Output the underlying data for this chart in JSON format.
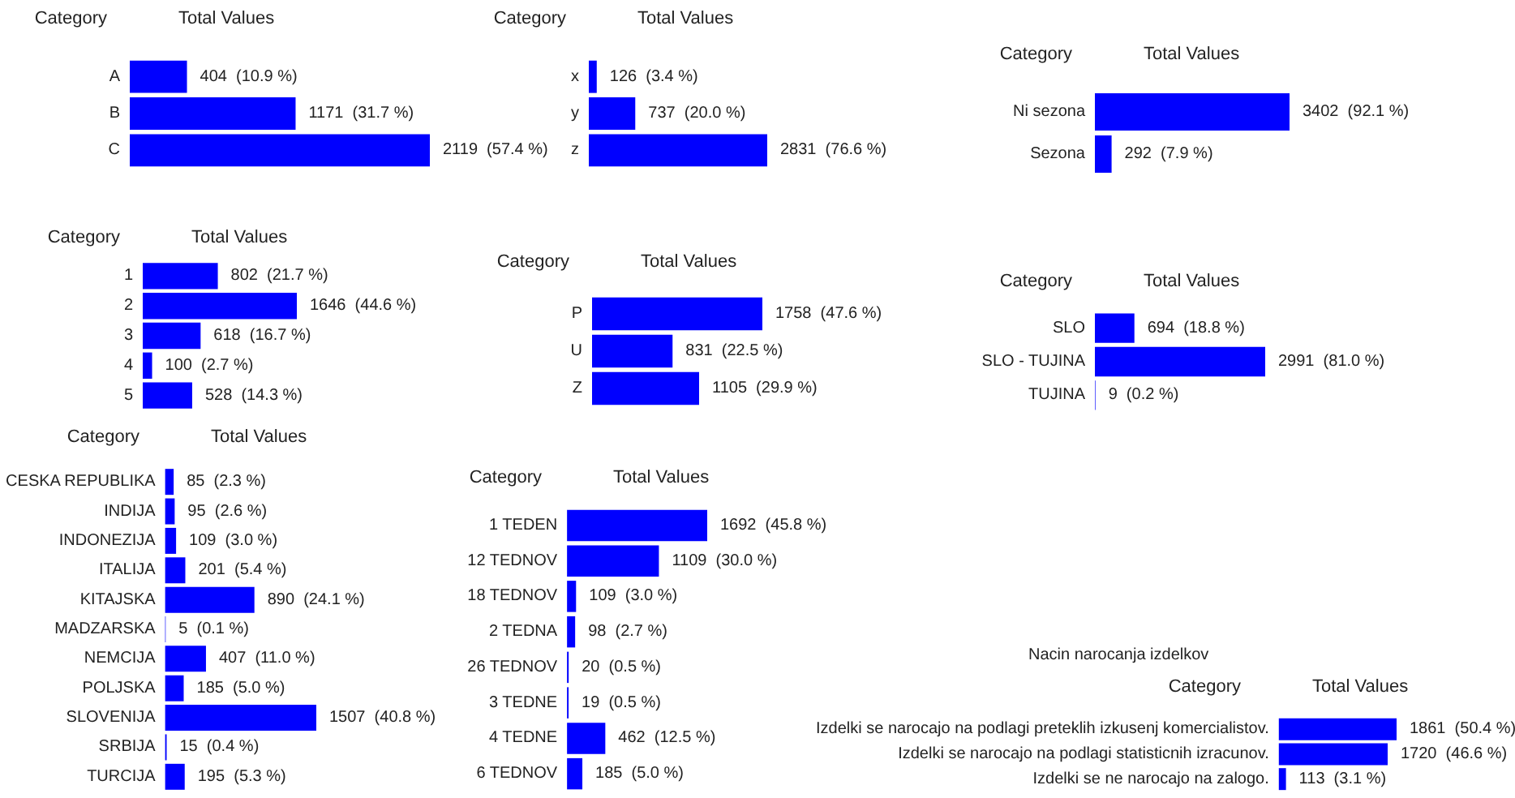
{
  "chart_data": [
    {
      "type": "bar",
      "orientation": "horizontal",
      "ylabel": "Category",
      "xlabel": "Total Values",
      "tick_labels": "y",
      "color": "#0000ff",
      "categories": [
        "A",
        "B",
        "C"
      ],
      "values": [
        404,
        1171,
        2119
      ],
      "value_labels": [
        "404  (10.9 %)",
        "1171  (31.7 %)",
        "2119  (57.4 %)"
      ]
    },
    {
      "type": "bar",
      "orientation": "horizontal",
      "ylabel": "Category",
      "xlabel": "Total Values",
      "tick_labels": "y",
      "color": "#0000ff",
      "categories": [
        "x",
        "y",
        "z"
      ],
      "values": [
        126,
        737,
        2831
      ],
      "value_labels": [
        "126  (3.4 %)",
        "737  (20.0 %)",
        "2831  (76.6 %)"
      ]
    },
    {
      "type": "bar",
      "orientation": "horizontal",
      "ylabel": "Category",
      "xlabel": "Total Values",
      "tick_labels": "y",
      "color": "#0000ff",
      "categories": [
        "Ni sezona",
        "Sezona"
      ],
      "values": [
        3402,
        292
      ],
      "value_labels": [
        "3402  (92.1 %)",
        "292  (7.9 %)"
      ]
    },
    {
      "type": "bar",
      "orientation": "horizontal",
      "ylabel": "Category",
      "xlabel": "Total Values",
      "tick_labels": "y",
      "color": "#0000ff",
      "categories": [
        "1",
        "2",
        "3",
        "4",
        "5"
      ],
      "values": [
        802,
        1646,
        618,
        100,
        528
      ],
      "value_labels": [
        "802  (21.7 %)",
        "1646  (44.6 %)",
        "618  (16.7 %)",
        "100  (2.7 %)",
        "528  (14.3 %)"
      ]
    },
    {
      "type": "bar",
      "orientation": "horizontal",
      "ylabel": "Category",
      "xlabel": "Total Values",
      "tick_labels": "y",
      "color": "#0000ff",
      "categories": [
        "P",
        "U",
        "Z"
      ],
      "values": [
        1758,
        831,
        1105
      ],
      "value_labels": [
        "1758  (47.6 %)",
        "831  (22.5 %)",
        "1105  (29.9 %)"
      ]
    },
    {
      "type": "bar",
      "orientation": "horizontal",
      "ylabel": "Category",
      "xlabel": "Total Values",
      "tick_labels": "y",
      "color": "#0000ff",
      "categories": [
        "SLO",
        "SLO - TUJINA",
        "TUJINA"
      ],
      "values": [
        694,
        2991,
        9
      ],
      "value_labels": [
        "694  (18.8 %)",
        "2991  (81.0 %)",
        "9  (0.2 %)"
      ]
    },
    {
      "type": "bar",
      "orientation": "horizontal",
      "ylabel": "Category",
      "xlabel": "Total Values",
      "tick_labels": "y",
      "color": "#0000ff",
      "categories": [
        "CESKA REPUBLIKA",
        "INDIJA",
        "INDONEZIJA",
        "ITALIJA",
        "KITAJSKA",
        "MADZARSKA",
        "NEMCIJA",
        "POLJSKA",
        "SLOVENIJA",
        "SRBIJA",
        "TURCIJA"
      ],
      "values": [
        85,
        95,
        109,
        201,
        890,
        5,
        407,
        185,
        1507,
        15,
        195
      ],
      "value_labels": [
        "85  (2.3 %)",
        "95  (2.6 %)",
        "109  (3.0 %)",
        "201  (5.4 %)",
        "890  (24.1 %)",
        "5  (0.1 %)",
        "407  (11.0 %)",
        "185  (5.0 %)",
        "1507  (40.8 %)",
        "15  (0.4 %)",
        "195  (5.3 %)"
      ]
    },
    {
      "type": "bar",
      "orientation": "horizontal",
      "ylabel": "Category",
      "xlabel": "Total Values",
      "tick_labels": "y",
      "color": "#0000ff",
      "categories": [
        "1 TEDEN",
        "12 TEDNOV",
        "18 TEDNOV",
        "2 TEDNA",
        "26 TEDNOV",
        "3 TEDNE",
        "4 TEDNE",
        "6 TEDNOV"
      ],
      "values": [
        1692,
        1109,
        109,
        98,
        20,
        19,
        462,
        185
      ],
      "value_labels": [
        "1692  (45.8 %)",
        "1109  (30.0 %)",
        "109  (3.0 %)",
        "98  (2.7 %)",
        "20  (0.5 %)",
        "19  (0.5 %)",
        "462  (12.5 %)",
        "185  (5.0 %)"
      ]
    },
    {
      "type": "bar",
      "orientation": "horizontal",
      "title": "Nacin narocanja izdelkov",
      "ylabel": "Category",
      "xlabel": "Total Values",
      "tick_labels": "y",
      "color": "#0000ff",
      "categories": [
        "Izdelki se narocajo na podlagi preteklih izkusenj komercialistov.",
        "Izdelki se narocajo na podlagi statisticnih izracunov.",
        "Izdelki se ne narocajo na zalogo."
      ],
      "values": [
        1861,
        1720,
        113
      ],
      "value_labels": [
        "1861  (50.4 %)",
        "1720  (46.6 %)",
        "113  (3.1 %)"
      ]
    }
  ]
}
